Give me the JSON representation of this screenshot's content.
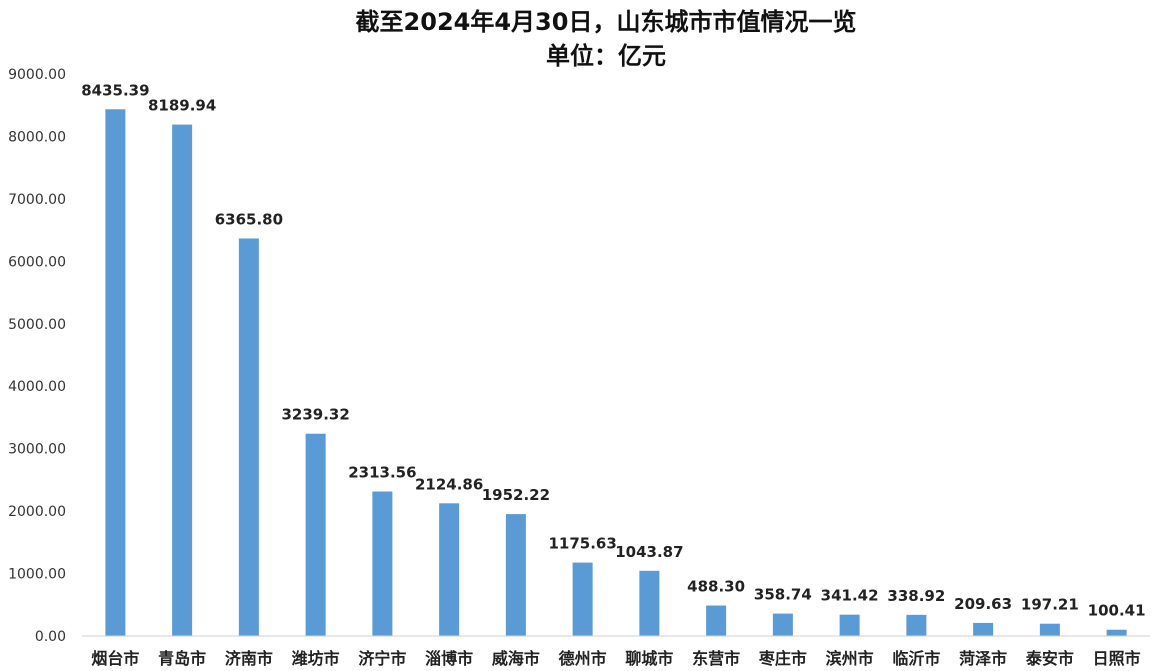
{
  "chart_data": {
    "type": "bar",
    "title": "截至2024年4月30日，山东城市市值情况一览",
    "subtitle": "单位：亿元",
    "xlabel": "",
    "ylabel": "",
    "categories": [
      "烟台市",
      "青岛市",
      "济南市",
      "潍坊市",
      "济宁市",
      "淄博市",
      "威海市",
      "德州市",
      "聊城市",
      "东营市",
      "枣庄市",
      "滨州市",
      "临沂市",
      "菏泽市",
      "泰安市",
      "日照市"
    ],
    "values": [
      8435.39,
      8189.94,
      6365.8,
      3239.32,
      2313.56,
      2124.86,
      1952.22,
      1175.63,
      1043.87,
      488.3,
      358.74,
      341.42,
      338.92,
      209.63,
      197.21,
      100.41
    ],
    "value_labels": [
      "8435.39",
      "8189.94",
      "6365.80",
      "3239.32",
      "2313.56",
      "2124.86",
      "1952.22",
      "1175.63",
      "1043.87",
      "488.30",
      "358.74",
      "341.42",
      "338.92",
      "209.63",
      "197.21",
      "100.41"
    ],
    "ylim": [
      0,
      9000
    ],
    "yticks": [
      "0.00",
      "1000.00",
      "2000.00",
      "3000.00",
      "4000.00",
      "5000.00",
      "6000.00",
      "7000.00",
      "8000.00",
      "9000.00"
    ],
    "grid": false,
    "legend": "none",
    "bar_color": "#5b9bd5"
  }
}
